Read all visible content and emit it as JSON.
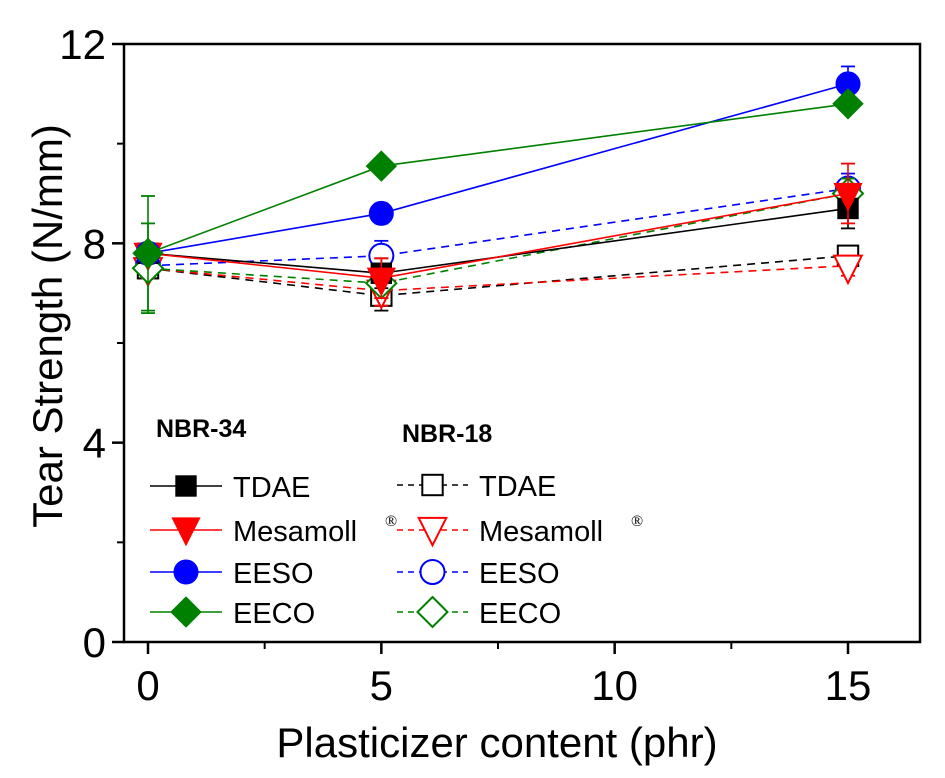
{
  "chart_data": {
    "type": "line",
    "title": "",
    "xlabel": "Plasticizer content (phr)",
    "ylabel": "Tear Strength (N/mm)",
    "xlim": [
      -0.5,
      16.5
    ],
    "ylim": [
      0,
      12
    ],
    "x_ticks": [
      0,
      5,
      10,
      15
    ],
    "x_tick_labels": [
      "0",
      "5",
      "10",
      "15"
    ],
    "x_minor_ticks": [
      2.5,
      7.5,
      12.5
    ],
    "y_ticks": [
      0,
      4,
      8,
      12
    ],
    "y_tick_labels": [
      "0",
      "4",
      "8",
      "12"
    ],
    "y_minor_ticks": [
      2,
      6,
      10
    ],
    "grid": false,
    "x": [
      0,
      5,
      15
    ],
    "legend_groups": [
      {
        "title": "NBR-34",
        "position": "bottom-left"
      },
      {
        "title": "NBR-18",
        "position": "bottom-center"
      }
    ],
    "series": [
      {
        "name": "TDAE",
        "group": "NBR-34",
        "label": "TDAE",
        "color": "#000000",
        "marker": "square",
        "filled": true,
        "dashed": false,
        "values": [
          7.8,
          7.4,
          8.7
        ],
        "errors": [
          0.2,
          0.3,
          0.4
        ]
      },
      {
        "name": "Mesamoll",
        "group": "NBR-34",
        "label": "Mesamoll",
        "sup": "®",
        "color": "#ff0000",
        "marker": "triangle-down",
        "filled": true,
        "dashed": false,
        "values": [
          7.8,
          7.3,
          9.0
        ],
        "errors": [
          0.2,
          0.4,
          0.6
        ]
      },
      {
        "name": "EESO",
        "group": "NBR-34",
        "label": "EESO",
        "color": "#0000ff",
        "marker": "circle",
        "filled": true,
        "dashed": false,
        "values": [
          7.8,
          8.6,
          11.2
        ],
        "errors": [
          0.2,
          0.2,
          0.35
        ]
      },
      {
        "name": "EECO",
        "group": "NBR-34",
        "label": "EECO",
        "color": "#008000",
        "marker": "diamond",
        "filled": true,
        "dashed": false,
        "values": [
          7.8,
          9.55,
          10.8
        ],
        "errors": [
          1.15,
          0.15,
          0.15
        ]
      },
      {
        "name": "TDAE",
        "group": "NBR-18",
        "label": "TDAE",
        "color": "#000000",
        "marker": "square",
        "filled": false,
        "dashed": true,
        "values": [
          7.5,
          6.95,
          7.75
        ],
        "errors": [
          0.2,
          0.3,
          0.2
        ]
      },
      {
        "name": "Mesamoll",
        "group": "NBR-18",
        "label": "Mesamoll",
        "sup": "®",
        "color": "#ff0000",
        "marker": "triangle-down",
        "filled": false,
        "dashed": true,
        "values": [
          7.5,
          7.05,
          7.55
        ],
        "errors": [
          0.2,
          0.3,
          0.2
        ]
      },
      {
        "name": "EESO",
        "group": "NBR-18",
        "label": "EESO",
        "color": "#0000ff",
        "marker": "circle",
        "filled": false,
        "dashed": true,
        "values": [
          7.55,
          7.75,
          9.1
        ],
        "errors": [
          0.2,
          0.3,
          0.3
        ]
      },
      {
        "name": "EECO",
        "group": "NBR-18",
        "label": "EECO",
        "color": "#008000",
        "marker": "diamond",
        "filled": false,
        "dashed": true,
        "values": [
          7.5,
          7.2,
          9.0
        ],
        "errors": [
          0.9,
          0.3,
          0.3
        ]
      }
    ]
  }
}
